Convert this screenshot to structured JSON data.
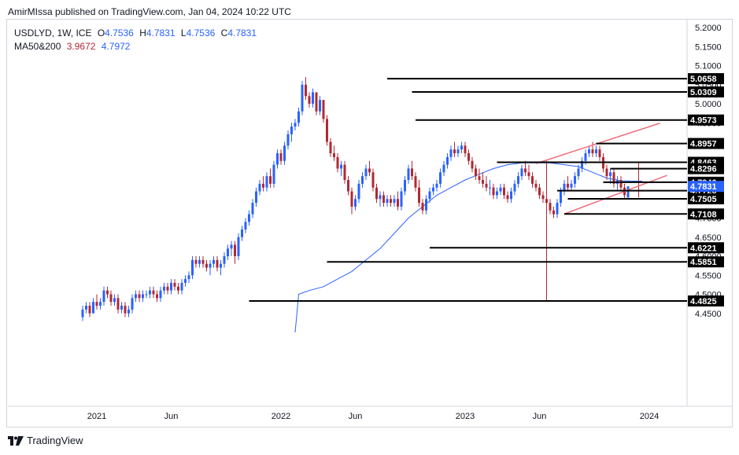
{
  "header": {
    "published": "AmirMIssa published on TradingView.com, Jan 04, 2024 10:22 UTC"
  },
  "legend": {
    "symbol": "USDLYD, 1W, ICE",
    "o_label": "O",
    "o_value": "4.7536",
    "h_label": "H",
    "h_value": "4.7831",
    "l_label": "L",
    "l_value": "4.7536",
    "c_label": "C",
    "c_value": "4.7831",
    "ma_label": "MA50&200",
    "ma50_value": "3.9672",
    "ma200_value": "4.7972"
  },
  "footer": {
    "brand": "TradingView"
  },
  "colors": {
    "up": "#2962ff",
    "down": "#b22833",
    "ma": "#2962ff",
    "trend": "#f06e7c",
    "level": "#000000",
    "grid": "#d1d4dc",
    "price_tag": "#2962ff"
  },
  "chart_data": {
    "type": "candlestick",
    "title": "USDLYD, 1W, ICE",
    "ylim": [
      4.4,
      5.21
    ],
    "y_ticks": [
      "5.2000",
      "5.1500",
      "5.1000",
      "5.0500",
      "5.0000",
      "4.9500",
      "4.9000",
      "4.8500",
      "4.8000",
      "4.7500",
      "4.7000",
      "4.6500",
      "4.6000",
      "4.5500",
      "4.5000",
      "4.4500"
    ],
    "x_ticks": [
      {
        "label": "2021",
        "x": 4
      },
      {
        "label": "Jun",
        "x": 25
      },
      {
        "label": "2022",
        "x": 56
      },
      {
        "label": "Jun",
        "x": 77
      },
      {
        "label": "2023",
        "x": 108
      },
      {
        "label": "Jun",
        "x": 129
      },
      {
        "label": "2024",
        "x": 160
      }
    ],
    "levels": [
      {
        "value": 5.0658,
        "label": "5.0658",
        "from": 86
      },
      {
        "value": 5.0309,
        "label": "5.0309",
        "from": 93
      },
      {
        "value": 4.9573,
        "label": "4.9573",
        "from": 94
      },
      {
        "value": 4.8957,
        "label": "4.8957",
        "from": 145
      },
      {
        "value": 4.8463,
        "label": "4.8463",
        "from": 117
      },
      {
        "value": 4.8296,
        "label": "4.8296",
        "from": 149
      },
      {
        "value": 4.794,
        "label": "4.7940",
        "from": 147
      },
      {
        "value": 4.772,
        "label": "4.7720",
        "from": 134
      },
      {
        "value": 4.7505,
        "label": "4.7505",
        "from": 137
      },
      {
        "value": 4.7108,
        "label": "4.7108",
        "from": 136
      },
      {
        "value": 4.6221,
        "label": "4.6221",
        "from": 98
      },
      {
        "value": 4.5851,
        "label": "4.5851",
        "from": 69
      },
      {
        "value": 4.4825,
        "label": "4.4825",
        "from": 47
      }
    ],
    "current_price": {
      "value": 4.7831,
      "label": "4.7831"
    },
    "trendlines": [
      {
        "x1": 136,
        "y1": 4.7108,
        "x2": 165,
        "y2": 4.812
      },
      {
        "x1": 128,
        "y1": 4.843,
        "x2": 163,
        "y2": 4.949
      }
    ],
    "spikes": [
      {
        "x": 131,
        "from": 4.85,
        "to": 4.4825
      },
      {
        "x": 157,
        "from": 4.844,
        "to": 4.754
      }
    ],
    "ma200": [
      [
        60,
        4.4
      ],
      [
        61,
        4.5
      ],
      [
        64,
        4.51
      ],
      [
        68,
        4.52
      ],
      [
        72,
        4.54
      ],
      [
        76,
        4.56
      ],
      [
        80,
        4.59
      ],
      [
        84,
        4.62
      ],
      [
        88,
        4.66
      ],
      [
        92,
        4.7
      ],
      [
        96,
        4.73
      ],
      [
        100,
        4.76
      ],
      [
        104,
        4.78
      ],
      [
        108,
        4.8
      ],
      [
        112,
        4.815
      ],
      [
        116,
        4.83
      ],
      [
        120,
        4.84
      ],
      [
        124,
        4.845
      ],
      [
        128,
        4.845
      ],
      [
        132,
        4.845
      ],
      [
        136,
        4.84
      ],
      [
        140,
        4.835
      ],
      [
        144,
        4.82
      ],
      [
        148,
        4.805
      ],
      [
        152,
        4.798
      ],
      [
        156,
        4.797
      ],
      [
        158,
        4.797
      ]
    ],
    "candles": [
      [
        0,
        4.44,
        4.47,
        4.43,
        4.46
      ],
      [
        1,
        4.46,
        4.48,
        4.45,
        4.47
      ],
      [
        2,
        4.47,
        4.48,
        4.44,
        4.45
      ],
      [
        3,
        4.45,
        4.49,
        4.45,
        4.48
      ],
      [
        4,
        4.48,
        4.5,
        4.46,
        4.47
      ],
      [
        5,
        4.47,
        4.49,
        4.46,
        4.48
      ],
      [
        6,
        4.48,
        4.52,
        4.47,
        4.51
      ],
      [
        7,
        4.51,
        4.52,
        4.49,
        4.5
      ],
      [
        8,
        4.5,
        4.51,
        4.47,
        4.48
      ],
      [
        9,
        4.48,
        4.5,
        4.47,
        4.49
      ],
      [
        10,
        4.49,
        4.5,
        4.45,
        4.46
      ],
      [
        11,
        4.46,
        4.48,
        4.45,
        4.47
      ],
      [
        12,
        4.47,
        4.48,
        4.44,
        4.45
      ],
      [
        13,
        4.45,
        4.47,
        4.44,
        4.46
      ],
      [
        14,
        4.46,
        4.5,
        4.45,
        4.49
      ],
      [
        15,
        4.49,
        4.51,
        4.48,
        4.5
      ],
      [
        16,
        4.5,
        4.51,
        4.48,
        4.49
      ],
      [
        17,
        4.49,
        4.51,
        4.48,
        4.5
      ],
      [
        18,
        4.5,
        4.51,
        4.49,
        4.5
      ],
      [
        19,
        4.5,
        4.52,
        4.49,
        4.51
      ],
      [
        20,
        4.51,
        4.52,
        4.49,
        4.5
      ],
      [
        21,
        4.5,
        4.51,
        4.48,
        4.49
      ],
      [
        22,
        4.49,
        4.52,
        4.48,
        4.51
      ],
      [
        23,
        4.51,
        4.53,
        4.5,
        4.52
      ],
      [
        24,
        4.52,
        4.53,
        4.5,
        4.51
      ],
      [
        25,
        4.51,
        4.54,
        4.5,
        4.53
      ],
      [
        26,
        4.53,
        4.54,
        4.51,
        4.52
      ],
      [
        27,
        4.52,
        4.53,
        4.5,
        4.51
      ],
      [
        28,
        4.51,
        4.54,
        4.5,
        4.53
      ],
      [
        29,
        4.53,
        4.55,
        4.52,
        4.54
      ],
      [
        30,
        4.54,
        4.56,
        4.53,
        4.55
      ],
      [
        31,
        4.55,
        4.6,
        4.54,
        4.59
      ],
      [
        32,
        4.59,
        4.6,
        4.57,
        4.58
      ],
      [
        33,
        4.58,
        4.6,
        4.57,
        4.59
      ],
      [
        34,
        4.59,
        4.6,
        4.57,
        4.58
      ],
      [
        35,
        4.58,
        4.59,
        4.56,
        4.57
      ],
      [
        36,
        4.57,
        4.59,
        4.55,
        4.58
      ],
      [
        37,
        4.58,
        4.6,
        4.57,
        4.59
      ],
      [
        38,
        4.59,
        4.6,
        4.56,
        4.57
      ],
      [
        39,
        4.57,
        4.59,
        4.55,
        4.58
      ],
      [
        40,
        4.58,
        4.61,
        4.57,
        4.6
      ],
      [
        41,
        4.6,
        4.63,
        4.59,
        4.62
      ],
      [
        42,
        4.62,
        4.64,
        4.6,
        4.63
      ],
      [
        43,
        4.63,
        4.64,
        4.58,
        4.6
      ],
      [
        44,
        4.6,
        4.66,
        4.59,
        4.65
      ],
      [
        45,
        4.65,
        4.68,
        4.64,
        4.67
      ],
      [
        46,
        4.67,
        4.7,
        4.66,
        4.69
      ],
      [
        47,
        4.69,
        4.72,
        4.68,
        4.71
      ],
      [
        48,
        4.71,
        4.75,
        4.7,
        4.74
      ],
      [
        49,
        4.74,
        4.78,
        4.73,
        4.77
      ],
      [
        50,
        4.77,
        4.8,
        4.76,
        4.79
      ],
      [
        51,
        4.79,
        4.81,
        4.77,
        4.78
      ],
      [
        52,
        4.78,
        4.82,
        4.77,
        4.81
      ],
      [
        53,
        4.81,
        4.83,
        4.78,
        4.79
      ],
      [
        54,
        4.79,
        4.85,
        4.78,
        4.84
      ],
      [
        55,
        4.84,
        4.88,
        4.83,
        4.87
      ],
      [
        56,
        4.87,
        4.88,
        4.84,
        4.85
      ],
      [
        57,
        4.85,
        4.9,
        4.84,
        4.89
      ],
      [
        58,
        4.89,
        4.93,
        4.88,
        4.92
      ],
      [
        59,
        4.92,
        4.95,
        4.9,
        4.94
      ],
      [
        60,
        4.94,
        4.96,
        4.93,
        4.95
      ],
      [
        61,
        4.95,
        4.99,
        4.94,
        4.98
      ],
      [
        62,
        4.98,
        5.06,
        4.97,
        5.05
      ],
      [
        63,
        5.05,
        5.07,
        5.01,
        5.02
      ],
      [
        64,
        5.02,
        5.03,
        4.99,
        5.0
      ],
      [
        65,
        5.0,
        5.04,
        4.99,
        5.03
      ],
      [
        66,
        5.03,
        5.03,
        4.97,
        4.98
      ],
      [
        67,
        4.98,
        5.02,
        4.97,
        5.01
      ],
      [
        68,
        5.01,
        5.01,
        4.95,
        4.96
      ],
      [
        69,
        4.96,
        4.97,
        4.89,
        4.9
      ],
      [
        70,
        4.9,
        4.91,
        4.86,
        4.87
      ],
      [
        71,
        4.87,
        4.89,
        4.85,
        4.86
      ],
      [
        72,
        4.86,
        4.87,
        4.82,
        4.83
      ],
      [
        73,
        4.83,
        4.85,
        4.81,
        4.84
      ],
      [
        74,
        4.84,
        4.85,
        4.79,
        4.8
      ],
      [
        75,
        4.8,
        4.81,
        4.76,
        4.77
      ],
      [
        76,
        4.77,
        4.78,
        4.71,
        4.73
      ],
      [
        77,
        4.73,
        4.76,
        4.72,
        4.75
      ],
      [
        78,
        4.75,
        4.8,
        4.74,
        4.79
      ],
      [
        79,
        4.79,
        4.82,
        4.78,
        4.81
      ],
      [
        80,
        4.81,
        4.84,
        4.8,
        4.83
      ],
      [
        81,
        4.83,
        4.85,
        4.81,
        4.82
      ],
      [
        82,
        4.82,
        4.83,
        4.77,
        4.78
      ],
      [
        83,
        4.78,
        4.79,
        4.74,
        4.75
      ],
      [
        84,
        4.75,
        4.77,
        4.73,
        4.76
      ],
      [
        85,
        4.76,
        4.77,
        4.73,
        4.74
      ],
      [
        86,
        4.74,
        4.76,
        4.73,
        4.75
      ],
      [
        87,
        4.75,
        4.76,
        4.73,
        4.74
      ],
      [
        88,
        4.74,
        4.76,
        4.73,
        4.75
      ],
      [
        89,
        4.75,
        4.77,
        4.72,
        4.73
      ],
      [
        90,
        4.73,
        4.78,
        4.72,
        4.77
      ],
      [
        91,
        4.77,
        4.81,
        4.76,
        4.8
      ],
      [
        92,
        4.8,
        4.84,
        4.79,
        4.83
      ],
      [
        93,
        4.83,
        4.85,
        4.8,
        4.81
      ],
      [
        94,
        4.81,
        4.82,
        4.77,
        4.78
      ],
      [
        95,
        4.78,
        4.8,
        4.73,
        4.74
      ],
      [
        96,
        4.74,
        4.75,
        4.71,
        4.72
      ],
      [
        97,
        4.72,
        4.76,
        4.71,
        4.75
      ],
      [
        98,
        4.75,
        4.78,
        4.74,
        4.77
      ],
      [
        99,
        4.77,
        4.79,
        4.76,
        4.78
      ],
      [
        100,
        4.78,
        4.8,
        4.77,
        4.79
      ],
      [
        101,
        4.79,
        4.83,
        4.78,
        4.82
      ],
      [
        102,
        4.82,
        4.85,
        4.81,
        4.84
      ],
      [
        103,
        4.84,
        4.87,
        4.83,
        4.86
      ],
      [
        104,
        4.86,
        4.89,
        4.85,
        4.88
      ],
      [
        105,
        4.88,
        4.9,
        4.86,
        4.87
      ],
      [
        106,
        4.87,
        4.89,
        4.86,
        4.88
      ],
      [
        107,
        4.88,
        4.9,
        4.87,
        4.89
      ],
      [
        108,
        4.89,
        4.9,
        4.86,
        4.87
      ],
      [
        109,
        4.87,
        4.88,
        4.84,
        4.85
      ],
      [
        110,
        4.85,
        4.86,
        4.82,
        4.83
      ],
      [
        111,
        4.83,
        4.84,
        4.8,
        4.81
      ],
      [
        112,
        4.81,
        4.83,
        4.79,
        4.8
      ],
      [
        113,
        4.8,
        4.82,
        4.78,
        4.79
      ],
      [
        114,
        4.79,
        4.81,
        4.77,
        4.78
      ],
      [
        115,
        4.78,
        4.8,
        4.76,
        4.78
      ],
      [
        116,
        4.78,
        4.79,
        4.75,
        4.76
      ],
      [
        117,
        4.76,
        4.78,
        4.75,
        4.77
      ],
      [
        118,
        4.77,
        4.79,
        4.76,
        4.78
      ],
      [
        119,
        4.78,
        4.79,
        4.75,
        4.76
      ],
      [
        120,
        4.76,
        4.77,
        4.74,
        4.75
      ],
      [
        121,
        4.75,
        4.78,
        4.74,
        4.77
      ],
      [
        122,
        4.77,
        4.8,
        4.76,
        4.79
      ],
      [
        123,
        4.79,
        4.82,
        4.78,
        4.81
      ],
      [
        124,
        4.81,
        4.84,
        4.8,
        4.83
      ],
      [
        125,
        4.83,
        4.85,
        4.81,
        4.82
      ],
      [
        126,
        4.82,
        4.84,
        4.8,
        4.81
      ],
      [
        127,
        4.81,
        4.82,
        4.78,
        4.79
      ],
      [
        128,
        4.79,
        4.8,
        4.77,
        4.78
      ],
      [
        129,
        4.78,
        4.79,
        4.75,
        4.76
      ],
      [
        130,
        4.76,
        4.77,
        4.74,
        4.75
      ],
      [
        131,
        4.75,
        4.76,
        4.73,
        4.74
      ],
      [
        132,
        4.74,
        4.75,
        4.71,
        4.72
      ],
      [
        133,
        4.72,
        4.73,
        4.7,
        4.71
      ],
      [
        134,
        4.71,
        4.75,
        4.7,
        4.74
      ],
      [
        135,
        4.74,
        4.78,
        4.73,
        4.77
      ],
      [
        136,
        4.77,
        4.8,
        4.76,
        4.79
      ],
      [
        137,
        4.79,
        4.81,
        4.77,
        4.78
      ],
      [
        138,
        4.78,
        4.8,
        4.77,
        4.79
      ],
      [
        139,
        4.79,
        4.82,
        4.78,
        4.81
      ],
      [
        140,
        4.81,
        4.84,
        4.8,
        4.83
      ],
      [
        141,
        4.83,
        4.86,
        4.82,
        4.85
      ],
      [
        142,
        4.85,
        4.88,
        4.84,
        4.87
      ],
      [
        143,
        4.87,
        4.89,
        4.86,
        4.88
      ],
      [
        144,
        4.88,
        4.9,
        4.86,
        4.87
      ],
      [
        145,
        4.87,
        4.89,
        4.86,
        4.88
      ],
      [
        146,
        4.88,
        4.89,
        4.85,
        4.86
      ],
      [
        147,
        4.86,
        4.87,
        4.82,
        4.83
      ],
      [
        148,
        4.83,
        4.84,
        4.8,
        4.81
      ],
      [
        149,
        4.81,
        4.83,
        4.79,
        4.82
      ],
      [
        150,
        4.82,
        4.83,
        4.78,
        4.79
      ],
      [
        151,
        4.79,
        4.81,
        4.77,
        4.8
      ],
      [
        152,
        4.8,
        4.81,
        4.77,
        4.78
      ],
      [
        153,
        4.78,
        4.79,
        4.75,
        4.76
      ],
      [
        154,
        4.7536,
        4.7831,
        4.7536,
        4.7831
      ]
    ]
  }
}
